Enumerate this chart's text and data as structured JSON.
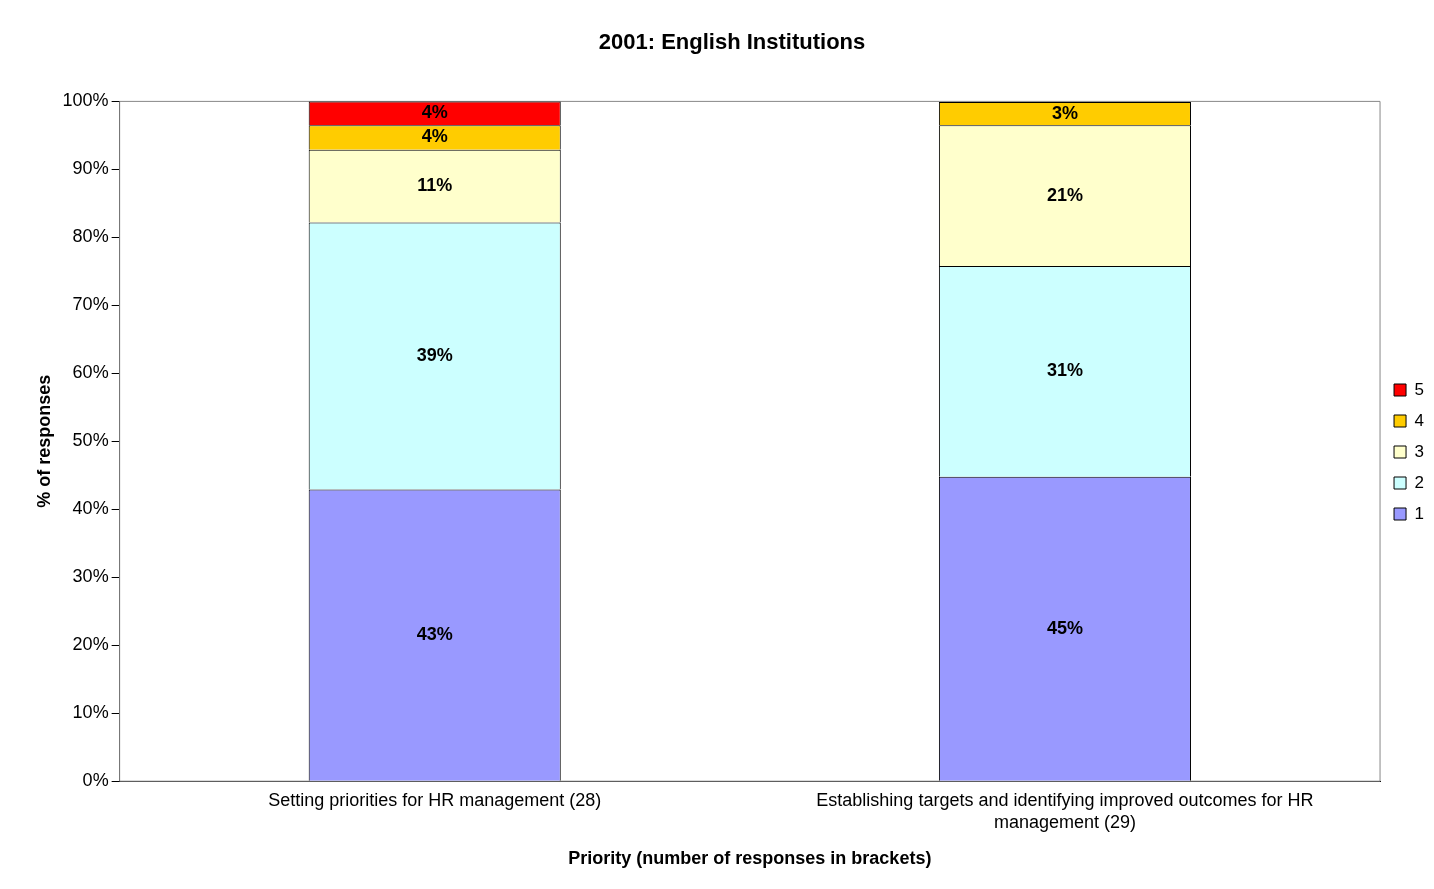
{
  "chart_data": {
    "type": "bar",
    "title": "2001: English Institutions",
    "xlabel": "Priority (number of responses in brackets)",
    "ylabel": "% of responses",
    "categories": [
      "Setting priorities for HR management (28)",
      "Establishing targets and identifying improved outcomes for HR management (29)"
    ],
    "stacked": true,
    "legend": "right",
    "grid": false,
    "ylim": [
      0,
      100
    ],
    "yticks": [
      {
        "value": 0,
        "label": "0%"
      },
      {
        "value": 10,
        "label": "10%"
      },
      {
        "value": 20,
        "label": "20%"
      },
      {
        "value": 30,
        "label": "30%"
      },
      {
        "value": 40,
        "label": "40%"
      },
      {
        "value": 50,
        "label": "50%"
      },
      {
        "value": 60,
        "label": "60%"
      },
      {
        "value": 70,
        "label": "70%"
      },
      {
        "value": 80,
        "label": "80%"
      },
      {
        "value": 90,
        "label": "90%"
      },
      {
        "value": 100,
        "label": "100%"
      }
    ],
    "series": [
      {
        "name": "1",
        "color": "#9999ff",
        "values": [
          42.9,
          44.8
        ],
        "value_labels": [
          "43%",
          "45%"
        ]
      },
      {
        "name": "2",
        "color": "#ccffff",
        "values": [
          39.3,
          31.0
        ],
        "value_labels": [
          "39%",
          "31%"
        ]
      },
      {
        "name": "3",
        "color": "#ffffcc",
        "values": [
          10.7,
          20.7
        ],
        "value_labels": [
          "11%",
          "21%"
        ]
      },
      {
        "name": "4",
        "color": "#ffcc00",
        "values": [
          3.6,
          3.4
        ],
        "value_labels": [
          "4%",
          "3%"
        ]
      },
      {
        "name": "5",
        "color": "#ff0000",
        "values": [
          3.5,
          null
        ],
        "value_labels": [
          "4%",
          null
        ]
      }
    ]
  }
}
